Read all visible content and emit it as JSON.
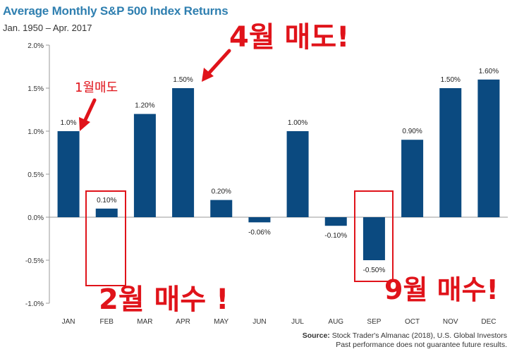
{
  "chart_data": {
    "type": "bar",
    "title": "Average Monthly S&P 500 Index Returns",
    "subtitle": "Jan. 1950 – Apr. 2017",
    "categories": [
      "JAN",
      "FEB",
      "MAR",
      "APR",
      "MAY",
      "JUN",
      "JUL",
      "AUG",
      "SEP",
      "OCT",
      "NOV",
      "DEC"
    ],
    "values": [
      1.0,
      0.1,
      1.2,
      1.5,
      0.2,
      -0.06,
      1.0,
      -0.1,
      -0.5,
      0.9,
      1.5,
      1.6
    ],
    "data_labels": [
      "1.0%",
      "0.10%",
      "1.20%",
      "1.50%",
      "0.20%",
      "-0.06%",
      "1.00%",
      "-0.10%",
      "-0.50%",
      "0.90%",
      "1.50%",
      "1.60%"
    ],
    "yticks": [
      2.0,
      1.5,
      1.0,
      0.5,
      0.0,
      -0.5,
      -1.0
    ],
    "ytick_labels": [
      "2.0%",
      "1.5%",
      "1.0%",
      "0.5%",
      "0.0%",
      "-0.5%",
      "-1.0%"
    ],
    "ylim": [
      -1.0,
      2.0
    ],
    "xlabel": "",
    "ylabel": "",
    "grid": false,
    "bar_color": "#0b4a80",
    "source_label": "Source:",
    "source_text": "Stock Trader's Almanac (2018), U.S. Global Investors",
    "disclaimer": "Past performance does not guarantee future results."
  },
  "annotations": {
    "color": "#e0131a",
    "sell_jan": "1월매도",
    "sell_apr": "4월 매도!",
    "buy_feb": "2월 매수 !",
    "buy_sep": "9월 매수!"
  }
}
